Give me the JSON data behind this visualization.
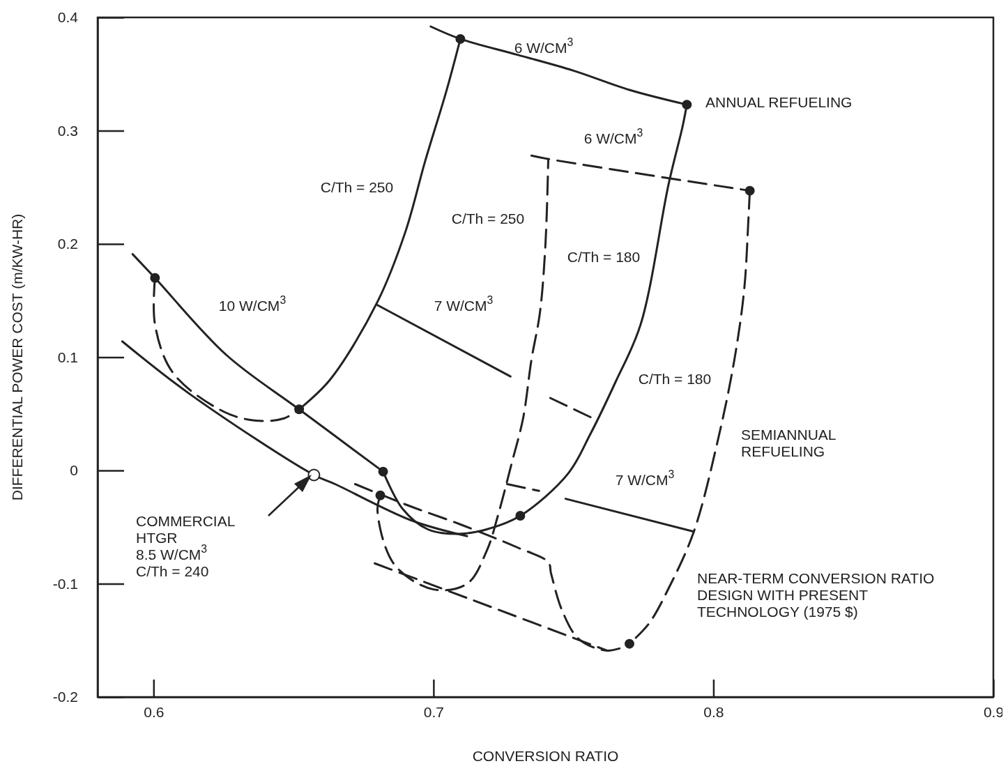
{
  "chart_data": {
    "type": "line",
    "xlabel": "CONVERSION RATIO",
    "ylabel": "DIFFERENTIAL POWER COST (m/KW-HR)",
    "xlim": [
      0.58,
      0.9
    ],
    "ylim": [
      -0.2,
      0.4
    ],
    "xticks": [
      0.6,
      0.7,
      0.8,
      0.9
    ],
    "yticks": [
      -0.2,
      -0.1,
      0,
      0.1,
      0.2,
      0.3,
      0.4
    ],
    "series": [
      {
        "line_style": "solid",
        "color": "#222222",
        "x": [
          0.652,
          0.663,
          0.68,
          0.69,
          0.697,
          0.7046,
          0.7096
        ],
        "values": [
          0.054,
          0.08,
          0.149,
          0.211,
          0.273,
          0.335,
          0.381
        ]
      },
      {
        "line_style": "solid",
        "color": "#222222",
        "x": [
          0.699,
          0.7096,
          0.73,
          0.75,
          0.77,
          0.7905
        ],
        "values": [
          0.392,
          0.381,
          0.367,
          0.353,
          0.336,
          0.323
        ]
      },
      {
        "line_style": "solid",
        "color": "#222222",
        "x": [
          0.682,
          0.689,
          0.698,
          0.709,
          0.719,
          0.731,
          0.748,
          0.756,
          0.765,
          0.774,
          0.784,
          0.789,
          0.7905
        ],
        "values": [
          -0.001,
          -0.034,
          -0.052,
          -0.056,
          -0.052,
          -0.04,
          -0.003,
          0.032,
          0.078,
          0.129,
          0.253,
          0.304,
          0.323
        ]
      },
      {
        "line_style": "solid",
        "color": "#222222",
        "x": [
          0.5925,
          0.6005,
          0.626,
          0.652,
          0.682
        ],
        "values": [
          0.191,
          0.17,
          0.102,
          0.054,
          -0.001
        ]
      },
      {
        "line_style": "solid",
        "color": "#222222",
        "x": [
          0.5888,
          0.6132,
          0.6573,
          0.6648,
          0.692,
          0.712
        ],
        "values": [
          0.114,
          0.067,
          -0.004,
          -0.012,
          -0.044,
          -0.058
        ]
      },
      {
        "line_style": "solid",
        "color": "#222222",
        "x": [
          0.68,
          0.7275
        ],
        "values": [
          0.146,
          0.083
        ]
      },
      {
        "line_style": "dashed",
        "color": "#222222",
        "x": [
          0.7417,
          0.757
        ],
        "values": [
          0.064,
          0.046
        ]
      },
      {
        "line_style": "dashed",
        "color": "#222222",
        "x": [
          0.6005,
          0.6005,
          0.607,
          0.625,
          0.6366,
          0.6466,
          0.652
        ],
        "values": [
          0.17,
          0.129,
          0.086,
          0.052,
          0.044,
          0.046,
          0.054
        ]
      },
      {
        "line_style": "dashed",
        "color": "#222222",
        "x": [
          0.735,
          0.741,
          0.813
        ],
        "values": [
          0.278,
          0.275,
          0.247
        ]
      },
      {
        "line_style": "dashed",
        "color": "#222222",
        "x": [
          0.681,
          0.68,
          0.686,
          0.7,
          0.712,
          0.719,
          0.723,
          0.728,
          0.732,
          0.735,
          0.738,
          0.74,
          0.741
        ],
        "values": [
          -0.022,
          -0.036,
          -0.083,
          -0.105,
          -0.1,
          -0.071,
          -0.04,
          0.007,
          0.046,
          0.098,
          0.139,
          0.2,
          0.275
        ]
      },
      {
        "line_style": "dashed",
        "color": "#222222",
        "x": [
          0.813,
          0.8125,
          0.811,
          0.8075,
          0.8017,
          0.793,
          0.784,
          0.777,
          0.77
        ],
        "values": [
          0.247,
          0.222,
          0.16,
          0.098,
          0.028,
          -0.054,
          -0.104,
          -0.135,
          -0.153
        ]
      },
      {
        "line_style": "dashed",
        "color": "#222222",
        "x": [
          0.672,
          0.69,
          0.71,
          0.73,
          0.741,
          0.742,
          0.746,
          0.752,
          0.762,
          0.77
        ],
        "values": [
          -0.012,
          -0.03,
          -0.048,
          -0.068,
          -0.081,
          -0.091,
          -0.124,
          -0.149,
          -0.159,
          -0.154
        ]
      },
      {
        "line_style": "dashed",
        "color": "#222222",
        "x": [
          0.679,
          0.72,
          0.762
        ],
        "values": [
          -0.082,
          -0.12,
          -0.159
        ]
      },
      {
        "line_style": "dashed",
        "color": "#222222",
        "x": [
          0.7263,
          0.7377
        ],
        "values": [
          -0.012,
          -0.018
        ]
      },
      {
        "line_style": "solid",
        "color": "#222222",
        "x": [
          0.7472,
          0.793
        ],
        "values": [
          -0.025,
          -0.054
        ]
      },
      {
        "type": "scatter",
        "marker": "circle",
        "color": "#222222",
        "x": [
          0.6005,
          0.652,
          0.682,
          0.681,
          0.7096,
          0.7905,
          0.813,
          0.731,
          0.77
        ],
        "values": [
          0.17,
          0.054,
          -0.001,
          -0.022,
          0.381,
          0.323,
          0.247,
          -0.04,
          -0.153
        ]
      },
      {
        "type": "scatter",
        "marker": "circle",
        "color": "#ffffff",
        "x": [
          0.6573
        ],
        "values": [
          -0.004
        ]
      }
    ],
    "annotations": [
      "6 W/CM$^{3}$",
      "ANNUAL REFUELING",
      "6 W/CM$^{3}$",
      "C/Th = 250",
      "C/Th = 250",
      "C/Th = 180",
      "10 W/CM$^{3}$",
      "7 W/CM$^{3}$",
      "C/Th = 180",
      "SEMIANNUAL\nREFUELING",
      "7 W/CM$^{3}$",
      "NEAR-TERM CONVERSION RATIO\nDESIGN WITH PRESENT\nTECHNOLOGY (1975 $)",
      "COMMERCIAL\nHTGR\n8.5 W/CM$^{3}$\nC/Th = 240"
    ]
  }
}
